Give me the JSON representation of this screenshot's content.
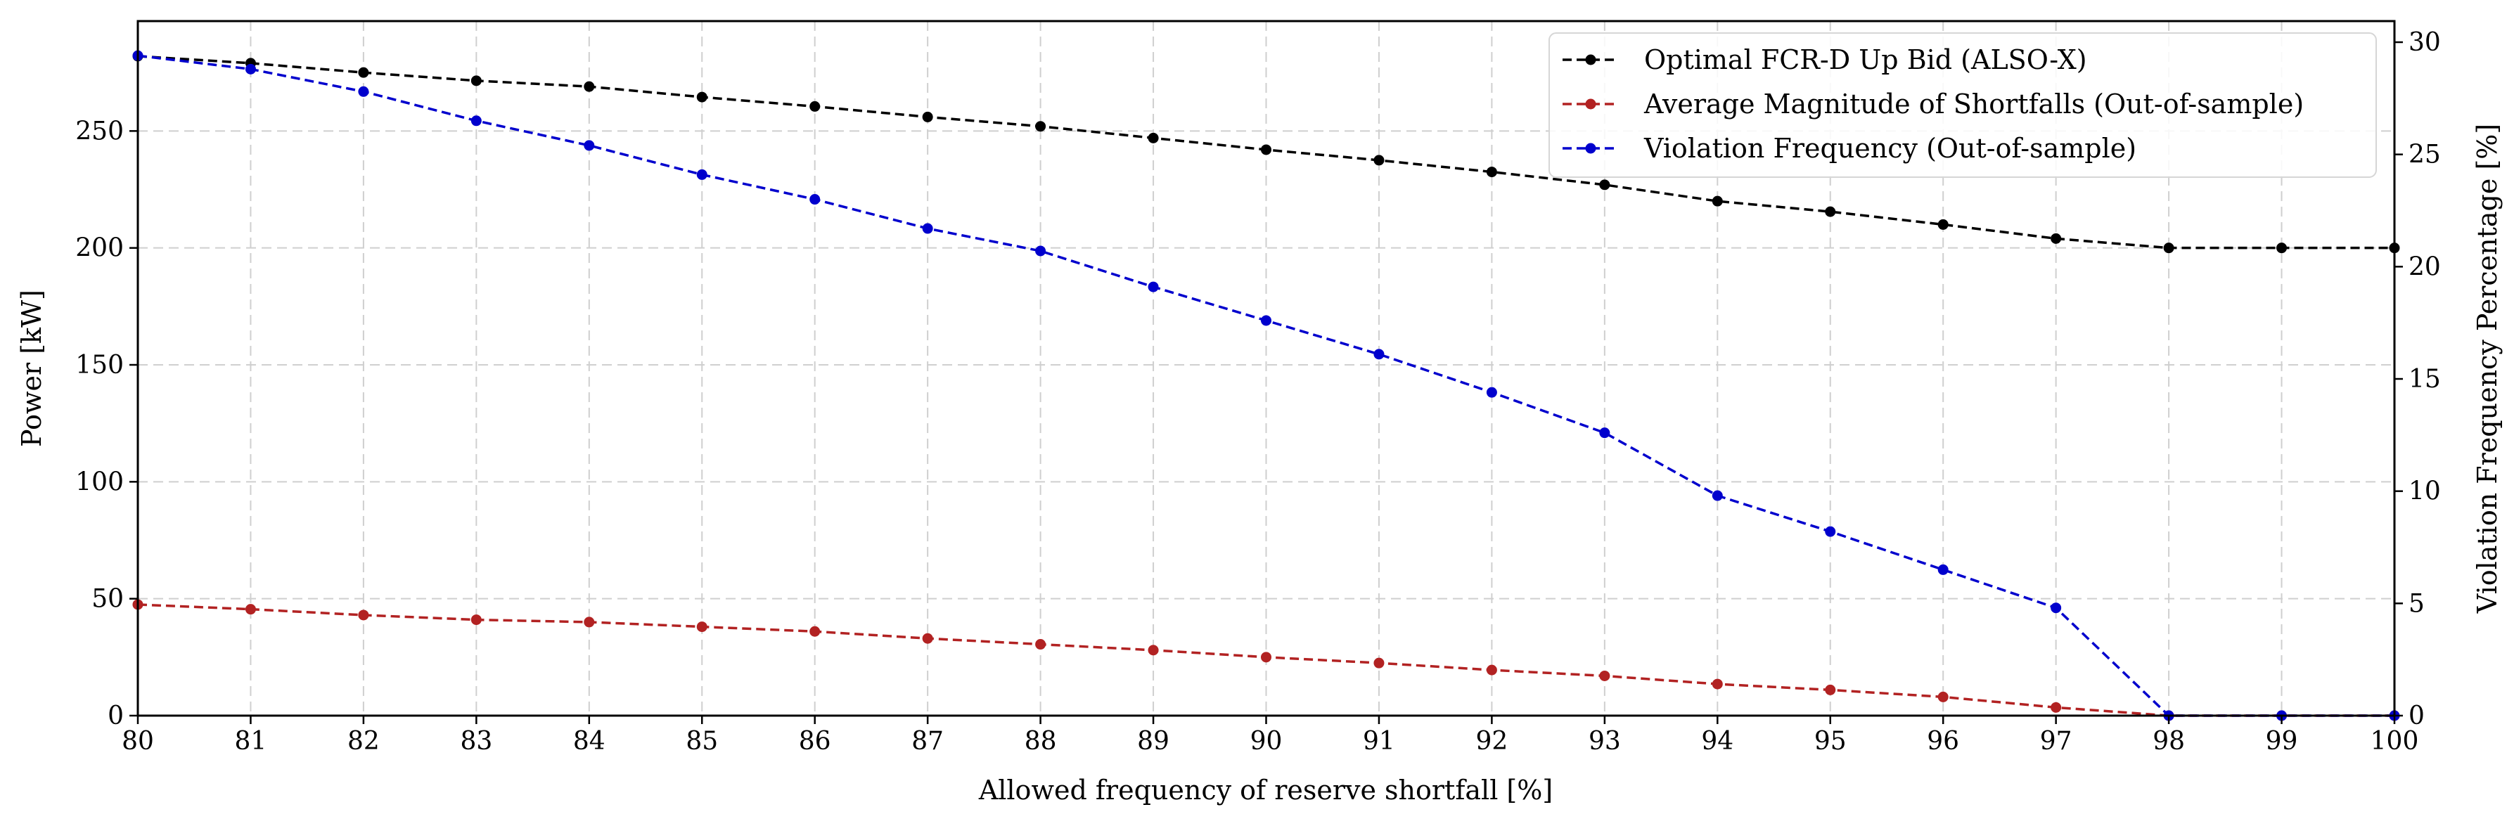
{
  "chart_data": {
    "type": "line",
    "xlabel": "Allowed frequency of reserve shortfall [%]",
    "ylabel_left": "Power [kW]",
    "ylabel_right": "Violation Frequency Percentage [%]",
    "x": [
      80,
      81,
      82,
      83,
      84,
      85,
      86,
      87,
      88,
      89,
      90,
      91,
      92,
      93,
      94,
      95,
      96,
      97,
      98,
      99,
      100
    ],
    "xlim": [
      80,
      100
    ],
    "ylim_left": [
      0,
      297
    ],
    "ylim_right": [
      0,
      30.94
    ],
    "xticks": [
      80,
      81,
      82,
      83,
      84,
      85,
      86,
      87,
      88,
      89,
      90,
      91,
      92,
      93,
      94,
      95,
      96,
      97,
      98,
      99,
      100
    ],
    "yticks_left": [
      0,
      50,
      100,
      150,
      200,
      250
    ],
    "yticks_right": [
      0,
      5,
      10,
      15,
      20,
      25,
      30
    ],
    "grid": true,
    "legend_position": "top-right",
    "series": [
      {
        "name": "Optimal FCR-D Up Bid (ALSO-X)",
        "axis": "left",
        "color": "#000000",
        "values": [
          282,
          279,
          275,
          271.5,
          269,
          264.5,
          260.5,
          256,
          252,
          247,
          242,
          237.5,
          232.5,
          227,
          220,
          215.5,
          210,
          204,
          200,
          200,
          200
        ]
      },
      {
        "name": "Average Magnitude of Shortfalls (Out-of-sample)",
        "axis": "left",
        "color": "#b22222",
        "values": [
          47.5,
          45.5,
          43,
          41,
          40,
          38,
          36,
          33,
          30.5,
          28,
          25,
          22.5,
          19.5,
          17,
          13.5,
          11,
          8,
          3.5,
          0,
          0,
          0
        ]
      },
      {
        "name": "Violation Frequency (Out-of-sample)",
        "axis": "right",
        "color": "#0000cd",
        "values": [
          29.4,
          28.8,
          27.8,
          26.5,
          25.4,
          24.1,
          23.0,
          21.7,
          20.7,
          19.1,
          17.6,
          16.1,
          14.4,
          12.6,
          9.8,
          8.2,
          6.5,
          4.8,
          0,
          0,
          0
        ]
      }
    ]
  }
}
